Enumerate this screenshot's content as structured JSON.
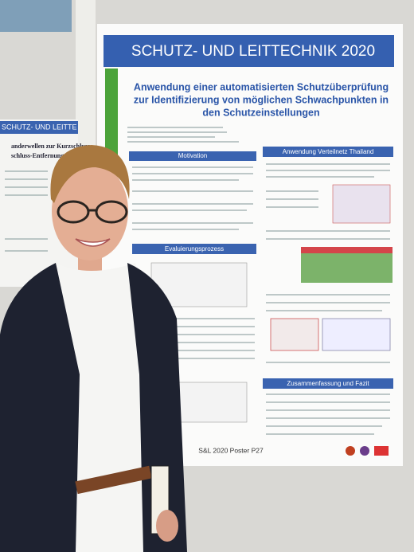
{
  "poster": {
    "banner": "SCHUTZ- UND LEITTECHNIK 2020",
    "title_lines": [
      "Anwendung einer automatisierten Schutzüberprüfung",
      "zur Identifizierung von möglichen Schwachpunkten in",
      "den Schutzeinstellungen"
    ],
    "sections": [
      "Motivation",
      "Anwendung Verteilnetz Thailand",
      "Evaluierungsprozess",
      "Zusammenfassung und Fazit"
    ],
    "footer": "S&L 2020 Poster P27"
  },
  "left_poster": {
    "banner": "SCHUTZ- UND LEITTE",
    "title_lines": [
      "anderwellen zur Kurzschluss",
      "schluss-Entfernungsmess"
    ]
  }
}
